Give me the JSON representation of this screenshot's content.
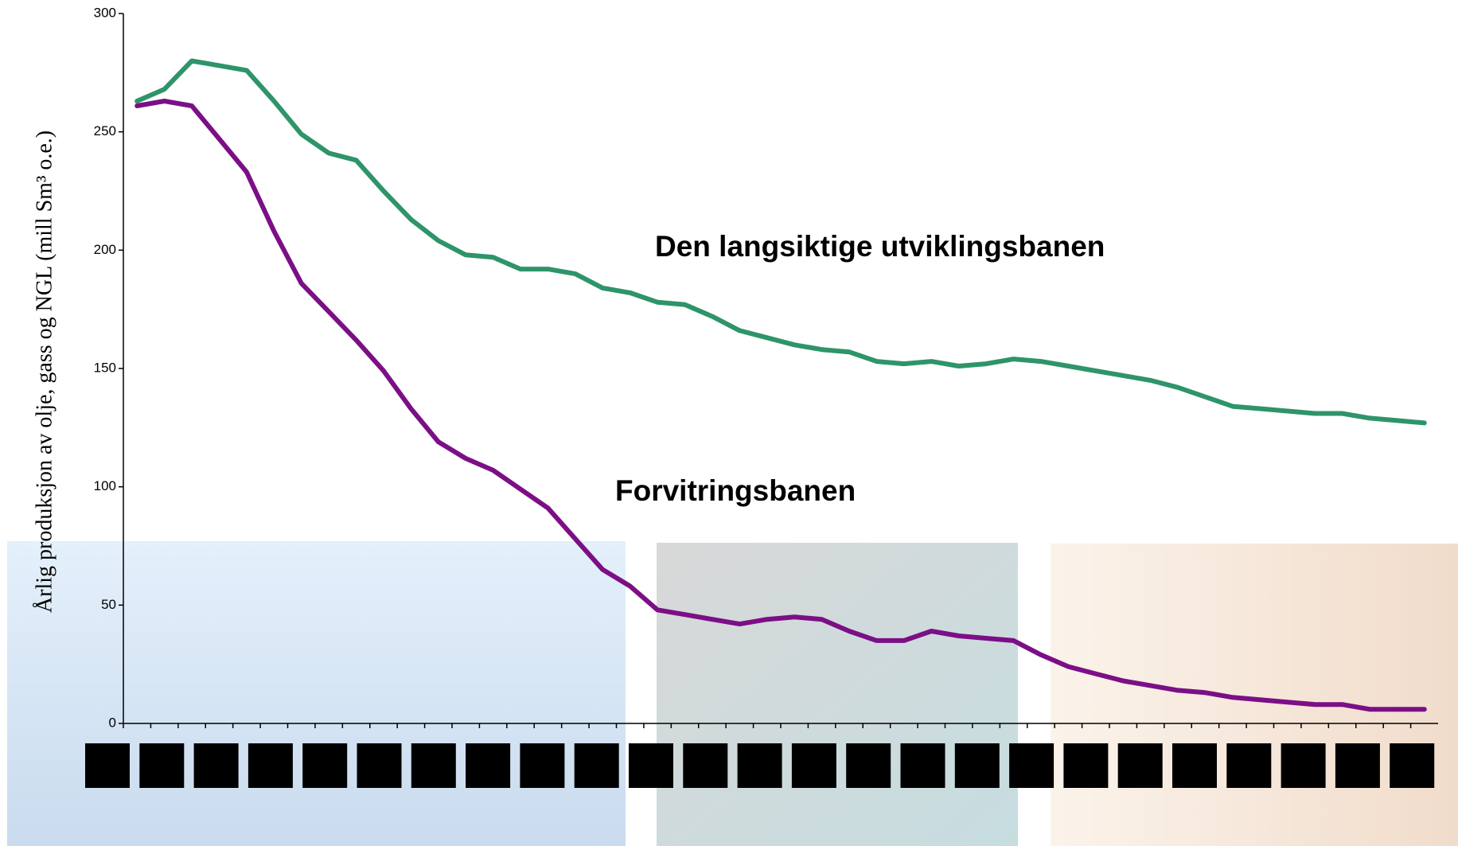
{
  "chart_data": {
    "type": "line",
    "y_label": "Årlig produksjon av olje, gass og NGL (mill Sm³ o.e.)",
    "annotations": [
      "Den langsiktige utviklingsbanen",
      "Forvitringsbanen"
    ],
    "categories": [
      null,
      null,
      null,
      null,
      null,
      null,
      null,
      null,
      null,
      null,
      null,
      null,
      null,
      null,
      null,
      null,
      null,
      null,
      null,
      null,
      null,
      null,
      null,
      null,
      null,
      null,
      null,
      null,
      null,
      null,
      null,
      null,
      null,
      null,
      null,
      null,
      null,
      null,
      null,
      null,
      null,
      null,
      null,
      null,
      null,
      null,
      null,
      null
    ],
    "series": [
      {
        "color": "#2e9469",
        "values": [
          263,
          268,
          280,
          278,
          276,
          263,
          249,
          241,
          238,
          225,
          213,
          204,
          198,
          197,
          192,
          192,
          190,
          184,
          182,
          178,
          177,
          172,
          166,
          163,
          160,
          158,
          157,
          153,
          152,
          153,
          151,
          152,
          154,
          153,
          151,
          149,
          147,
          145,
          142,
          138,
          134,
          133,
          132,
          131,
          131,
          129,
          128,
          127
        ]
      },
      {
        "color": "#7b0f86",
        "values": [
          261,
          263,
          261,
          247,
          233,
          208,
          186,
          174,
          162,
          149,
          133,
          119,
          112,
          107,
          99,
          91,
          78,
          65,
          58,
          48,
          46,
          44,
          42,
          44,
          45,
          44,
          39,
          35,
          35,
          39,
          37,
          36,
          35,
          29,
          24,
          21,
          18,
          16,
          14,
          13,
          11,
          10,
          9,
          8,
          8,
          6,
          6,
          6
        ]
      }
    ],
    "ylim": [
      0,
      300
    ],
    "yticks": [
      0,
      50,
      100,
      150,
      200,
      250,
      300
    ]
  }
}
